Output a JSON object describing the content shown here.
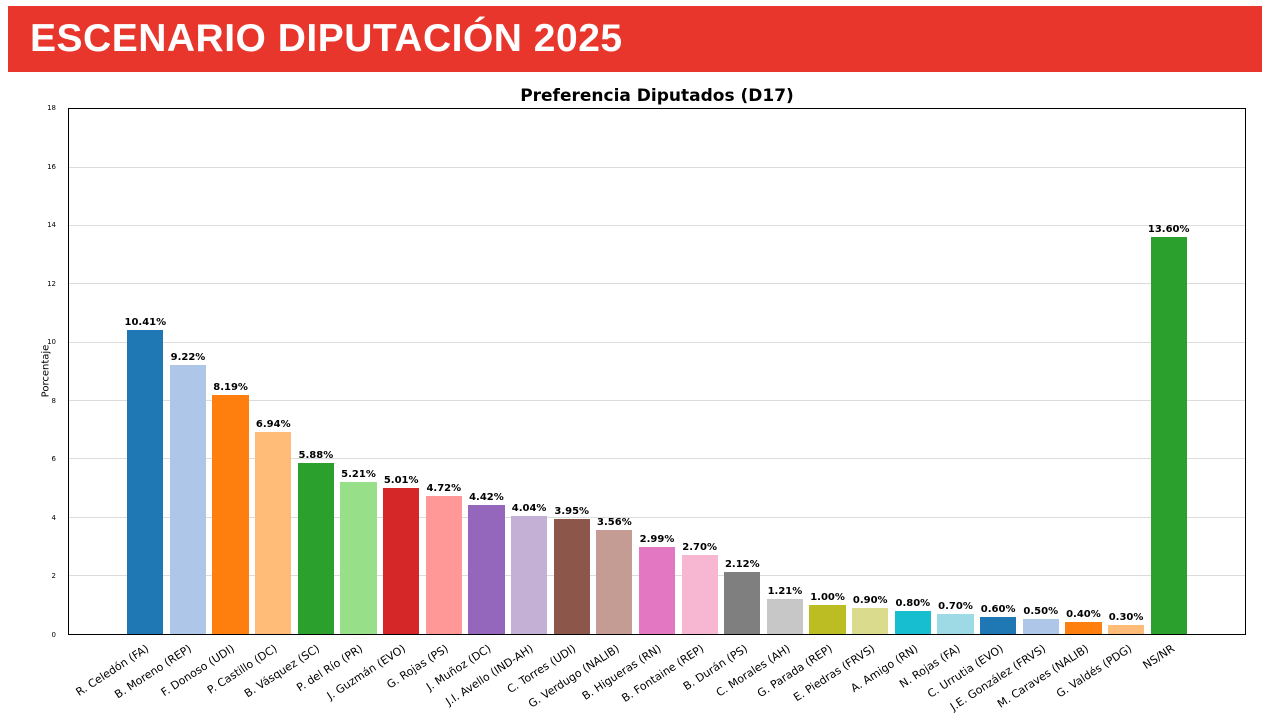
{
  "banner": {
    "title": "ESCENARIO DIPUTACIÓN 2025",
    "bg_color": "#e8362d",
    "text_color": "#ffffff"
  },
  "chart_data": {
    "type": "bar",
    "title": "Preferencia Diputados (D17)",
    "xlabel": "",
    "ylabel": "Porcentaje",
    "ylim": [
      0,
      18
    ],
    "yticks": [
      0,
      2,
      4,
      6,
      8,
      10,
      12,
      14,
      16,
      18
    ],
    "grid": true,
    "legend": "none",
    "categories": [
      "R. Celedón (FA)",
      "B. Moreno (REP)",
      "F. Donoso (UDI)",
      "P. Castillo (DC)",
      "B. Vásquez (SC)",
      "P. del Río (PR)",
      "J. Guzmán (EVO)",
      "G. Rojas (PS)",
      "J. Muñoz (DC)",
      "J.I. Avello (IND-AH)",
      "C. Torres (UDI)",
      "G. Verdugo (NALIB)",
      "B. Higueras (RN)",
      "B. Fontaine (REP)",
      "B. Durán (PS)",
      "C. Morales (AH)",
      "G. Parada (REP)",
      "E. Piedras (FRVS)",
      "A. Amigo (RN)",
      "N. Rojas (FA)",
      "C. Urrutia (EVO)",
      "J.E. González (FRVS)",
      "M. Caraves (NALIB)",
      "G. Valdés (PDG)",
      "NS/NR"
    ],
    "values": [
      10.41,
      9.22,
      8.19,
      6.94,
      5.88,
      5.21,
      5.01,
      4.72,
      4.42,
      4.04,
      3.95,
      3.56,
      2.99,
      2.7,
      2.12,
      1.21,
      1.0,
      0.9,
      0.8,
      0.7,
      0.6,
      0.5,
      0.4,
      0.3,
      13.6
    ],
    "labels": [
      "10.41%",
      "9.22%",
      "8.19%",
      "6.94%",
      "5.88%",
      "5.21%",
      "5.01%",
      "4.72%",
      "4.42%",
      "4.04%",
      "3.95%",
      "3.56%",
      "2.99%",
      "2.70%",
      "2.12%",
      "1.21%",
      "1.00%",
      "0.90%",
      "0.80%",
      "0.70%",
      "0.60%",
      "0.50%",
      "0.40%",
      "0.30%",
      "13.60%"
    ],
    "colors": [
      "#1f77b4",
      "#aec7e8",
      "#ff7f0e",
      "#ffbb78",
      "#2ca02c",
      "#98df8a",
      "#d62728",
      "#ff9896",
      "#9467bd",
      "#c5b0d5",
      "#8c564b",
      "#c49c94",
      "#e377c2",
      "#f7b6d2",
      "#7f7f7f",
      "#c7c7c7",
      "#bcbd22",
      "#dbdb8d",
      "#17becf",
      "#9edae5",
      "#1f77b4",
      "#aec7e8",
      "#ff7f0e",
      "#ffbb78",
      "#2ca02c"
    ],
    "gridline_color": "#dcdcdc"
  }
}
